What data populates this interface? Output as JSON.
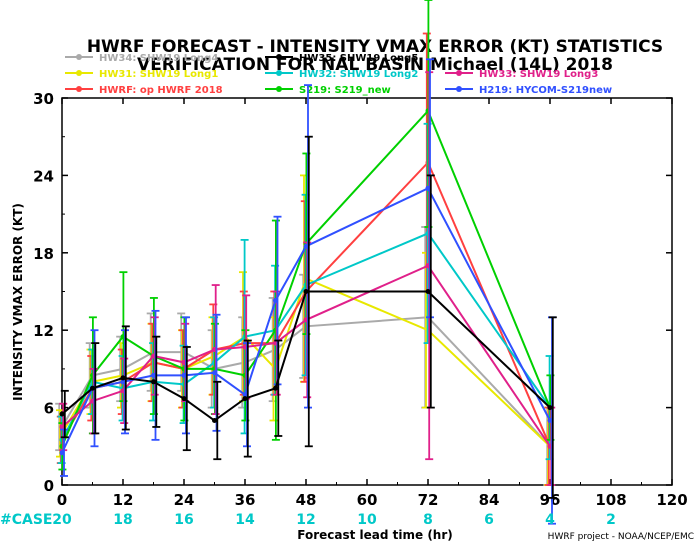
{
  "chart_data": {
    "type": "line",
    "title": "HWRF FORECAST - INTENSITY VMAX ERROR (KT) STATISTICS",
    "subtitle": "VERIFICATION FOR NAL BASIN Michael (14L) 2018",
    "xlabel": "Forecast lead time (hr)",
    "ylabel": "INTENSITY VMAX ERROR (KT)",
    "xlim": [
      0,
      120
    ],
    "ylim": [
      0,
      30
    ],
    "x_ticks": [
      "0",
      "12",
      "24",
      "36",
      "48",
      "60",
      "72",
      "84",
      "96",
      "108",
      "120"
    ],
    "y_ticks": [
      "0",
      "6",
      "12",
      "18",
      "24",
      "30"
    ],
    "case_label": "#CASE",
    "cases": [
      "20",
      "18",
      "16",
      "14",
      "12",
      "10",
      "8",
      "6",
      "4",
      "2"
    ],
    "footer": "HWRF project - NOAA/NCEP/EMC",
    "grid": false,
    "legend_position": "top",
    "x": [
      0,
      6,
      12,
      18,
      24,
      30,
      36,
      42,
      48,
      72,
      96
    ],
    "series": [
      {
        "name": "HW34: SHW19 Long4",
        "color": "#aaaaaa",
        "values": [
          4.5,
          8.5,
          9.0,
          10.3,
          10.3,
          9.0,
          9.5,
          10.5,
          12.3,
          13.0,
          3.0
        ],
        "err": [
          1.8,
          2.5,
          2.5,
          3.0,
          3.0,
          3.0,
          3.5,
          4.0,
          4.0,
          7.0,
          3.0
        ]
      },
      {
        "name": "HW31: SHW19 Long1",
        "color": "#e8e800",
        "values": [
          4.0,
          8.0,
          8.5,
          9.5,
          9.0,
          10.0,
          11.5,
          9.0,
          16.0,
          12.0,
          3.0
        ],
        "err": [
          1.8,
          2.5,
          2.5,
          3.0,
          3.0,
          3.0,
          5.0,
          4.0,
          8.0,
          6.0,
          3.0
        ]
      },
      {
        "name": "HWRF: op HWRF 2018",
        "color": "#ff4040",
        "values": [
          3.5,
          7.5,
          8.0,
          9.5,
          9.0,
          10.5,
          11.0,
          11.0,
          15.0,
          25.0,
          3.0
        ],
        "err": [
          1.8,
          2.5,
          2.5,
          3.0,
          3.0,
          3.5,
          4.0,
          4.0,
          7.0,
          10.0,
          3.0
        ]
      },
      {
        "name": "HW32: SHW19 Long2",
        "color": "#00c8c8",
        "values": [
          3.5,
          8.0,
          7.5,
          8.0,
          7.8,
          9.5,
          11.5,
          12.0,
          15.5,
          19.5,
          6.0
        ],
        "err": [
          1.8,
          2.5,
          2.5,
          3.0,
          3.0,
          3.5,
          7.5,
          5.0,
          7.0,
          8.5,
          4.0
        ]
      },
      {
        "name": "S219: S219_new",
        "color": "#00d000",
        "values": [
          3.0,
          8.5,
          11.5,
          10.0,
          9.0,
          9.0,
          8.5,
          12.0,
          18.7,
          29.0,
          6.0
        ],
        "err": [
          1.8,
          4.5,
          5.0,
          4.5,
          4.0,
          3.5,
          3.5,
          8.5,
          7.0,
          9.0,
          2.5
        ]
      },
      {
        "name": "HW33: SHW19 Long3",
        "color": "#e0208a",
        "values": [
          4.5,
          6.5,
          7.3,
          10.0,
          9.5,
          10.5,
          10.7,
          11.0,
          12.8,
          17.0,
          3.0
        ],
        "err": [
          1.8,
          2.5,
          2.5,
          3.0,
          3.0,
          5.0,
          4.0,
          4.0,
          6.0,
          15.0,
          3.0
        ]
      },
      {
        "name": "H219: HYCOM-S219new",
        "color": "#3050ff",
        "values": [
          2.5,
          7.5,
          8.0,
          8.5,
          8.5,
          8.7,
          7.0,
          14.3,
          18.5,
          23.0,
          5.0
        ],
        "err": [
          1.8,
          4.5,
          4.0,
          5.0,
          4.5,
          4.5,
          4.0,
          6.5,
          12.5,
          10.0,
          8.0
        ]
      },
      {
        "name": "HW35: SHW19 Long5",
        "color": "#000000",
        "values": [
          5.5,
          7.5,
          8.3,
          8.0,
          6.7,
          5.0,
          6.7,
          7.5,
          15.0,
          15.0,
          6.0
        ],
        "err": [
          1.8,
          3.5,
          4.0,
          3.5,
          4.0,
          3.0,
          4.5,
          3.7,
          12.0,
          9.0,
          7.0
        ]
      }
    ],
    "legend_rows": [
      [
        {
          "i": 0
        },
        {
          "i": 7
        }
      ],
      [
        {
          "i": 1
        },
        {
          "i": 3
        },
        {
          "i": 5
        }
      ],
      [
        {
          "i": 2
        },
        {
          "i": 4
        },
        {
          "i": 6
        }
      ]
    ]
  }
}
